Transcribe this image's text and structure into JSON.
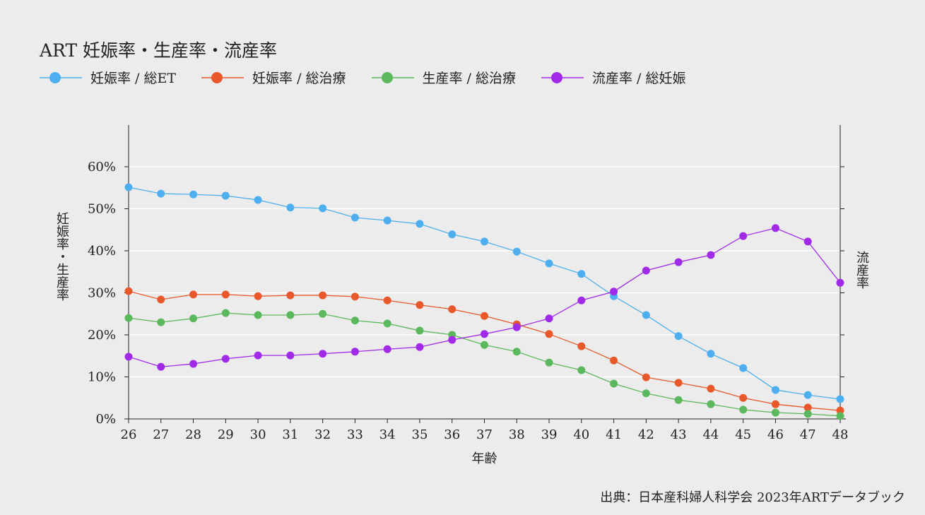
{
  "chart_data": {
    "type": "line",
    "title": "ART 妊娠率・生産率・流産率",
    "xlabel": "年齢",
    "ylabel": "妊娠率・生産率",
    "y2label": "流産率",
    "x": [
      26,
      27,
      28,
      29,
      30,
      31,
      32,
      33,
      34,
      35,
      36,
      37,
      38,
      39,
      40,
      41,
      42,
      43,
      44,
      45,
      46,
      47,
      48
    ],
    "ylim": [
      0,
      70
    ],
    "yticks": [
      0,
      10,
      20,
      30,
      40,
      50,
      60
    ],
    "ytick_labels": [
      "0%",
      "10%",
      "20%",
      "30%",
      "40%",
      "50%",
      "60%"
    ],
    "grid": true,
    "legend": "top-left",
    "series": [
      {
        "name": "妊娠率 / 総ET",
        "color": "#4dafef",
        "axis": "left",
        "values": [
          55.1,
          53.6,
          53.4,
          53.1,
          52.1,
          50.3,
          50.1,
          47.9,
          47.2,
          46.4,
          43.9,
          42.2,
          39.8,
          37.0,
          34.5,
          29.2,
          24.7,
          19.7,
          15.5,
          12.1,
          6.9,
          5.7,
          4.7
        ]
      },
      {
        "name": "妊娠率 / 総治療",
        "color": "#e8582a",
        "axis": "left",
        "values": [
          30.4,
          28.4,
          29.6,
          29.6,
          29.2,
          29.4,
          29.4,
          29.1,
          28.2,
          27.1,
          26.1,
          24.5,
          22.5,
          20.2,
          17.3,
          13.9,
          9.9,
          8.6,
          7.2,
          5.0,
          3.5,
          2.7,
          2.0
        ]
      },
      {
        "name": "生産率 / 総治療",
        "color": "#5cb85c",
        "axis": "left",
        "values": [
          24.0,
          23.0,
          23.9,
          25.2,
          24.7,
          24.7,
          25.0,
          23.4,
          22.7,
          21.0,
          20.0,
          17.6,
          16.0,
          13.4,
          11.6,
          8.4,
          6.1,
          4.5,
          3.5,
          2.2,
          1.5,
          1.2,
          0.7
        ]
      },
      {
        "name": "流産率 / 総妊娠",
        "color": "#a02ae8",
        "axis": "right",
        "values": [
          14.8,
          12.4,
          13.1,
          14.3,
          15.1,
          15.1,
          15.5,
          16.0,
          16.6,
          17.1,
          18.8,
          20.2,
          21.8,
          23.9,
          28.2,
          30.3,
          35.3,
          37.3,
          39.0,
          43.5,
          45.4,
          42.2,
          32.4
        ]
      }
    ]
  },
  "source": "出典：日本産科婦人科学会 2023年ARTデータブック"
}
